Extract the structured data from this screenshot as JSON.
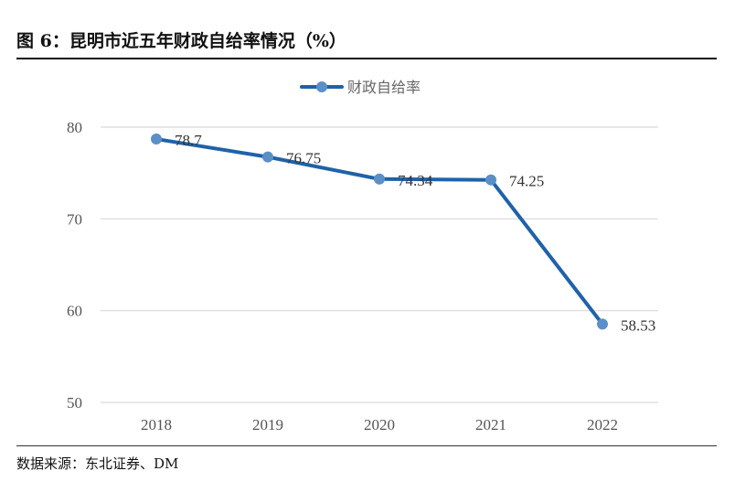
{
  "figure": {
    "title": "图 6：昆明市近五年财政自给率情况（%）",
    "source": "数据来源：东北证券、DM"
  },
  "chart_data": {
    "type": "line",
    "title": "",
    "xlabel": "",
    "ylabel": "",
    "categories": [
      "2018",
      "2019",
      "2020",
      "2021",
      "2022"
    ],
    "series": [
      {
        "name": "财政自给率",
        "values": [
          78.7,
          76.75,
          74.34,
          74.25,
          58.53
        ]
      }
    ],
    "data_labels": [
      "78.7",
      "76.75",
      "74.34",
      "74.25",
      "58.53"
    ],
    "ylim": [
      50,
      80
    ],
    "yticks": [
      50,
      60,
      70,
      80
    ],
    "grid": true,
    "legend_position": "top-center",
    "colors": {
      "line": "#1f62a8",
      "marker": "#5b8fc7",
      "grid": "#d9d9d9"
    }
  }
}
